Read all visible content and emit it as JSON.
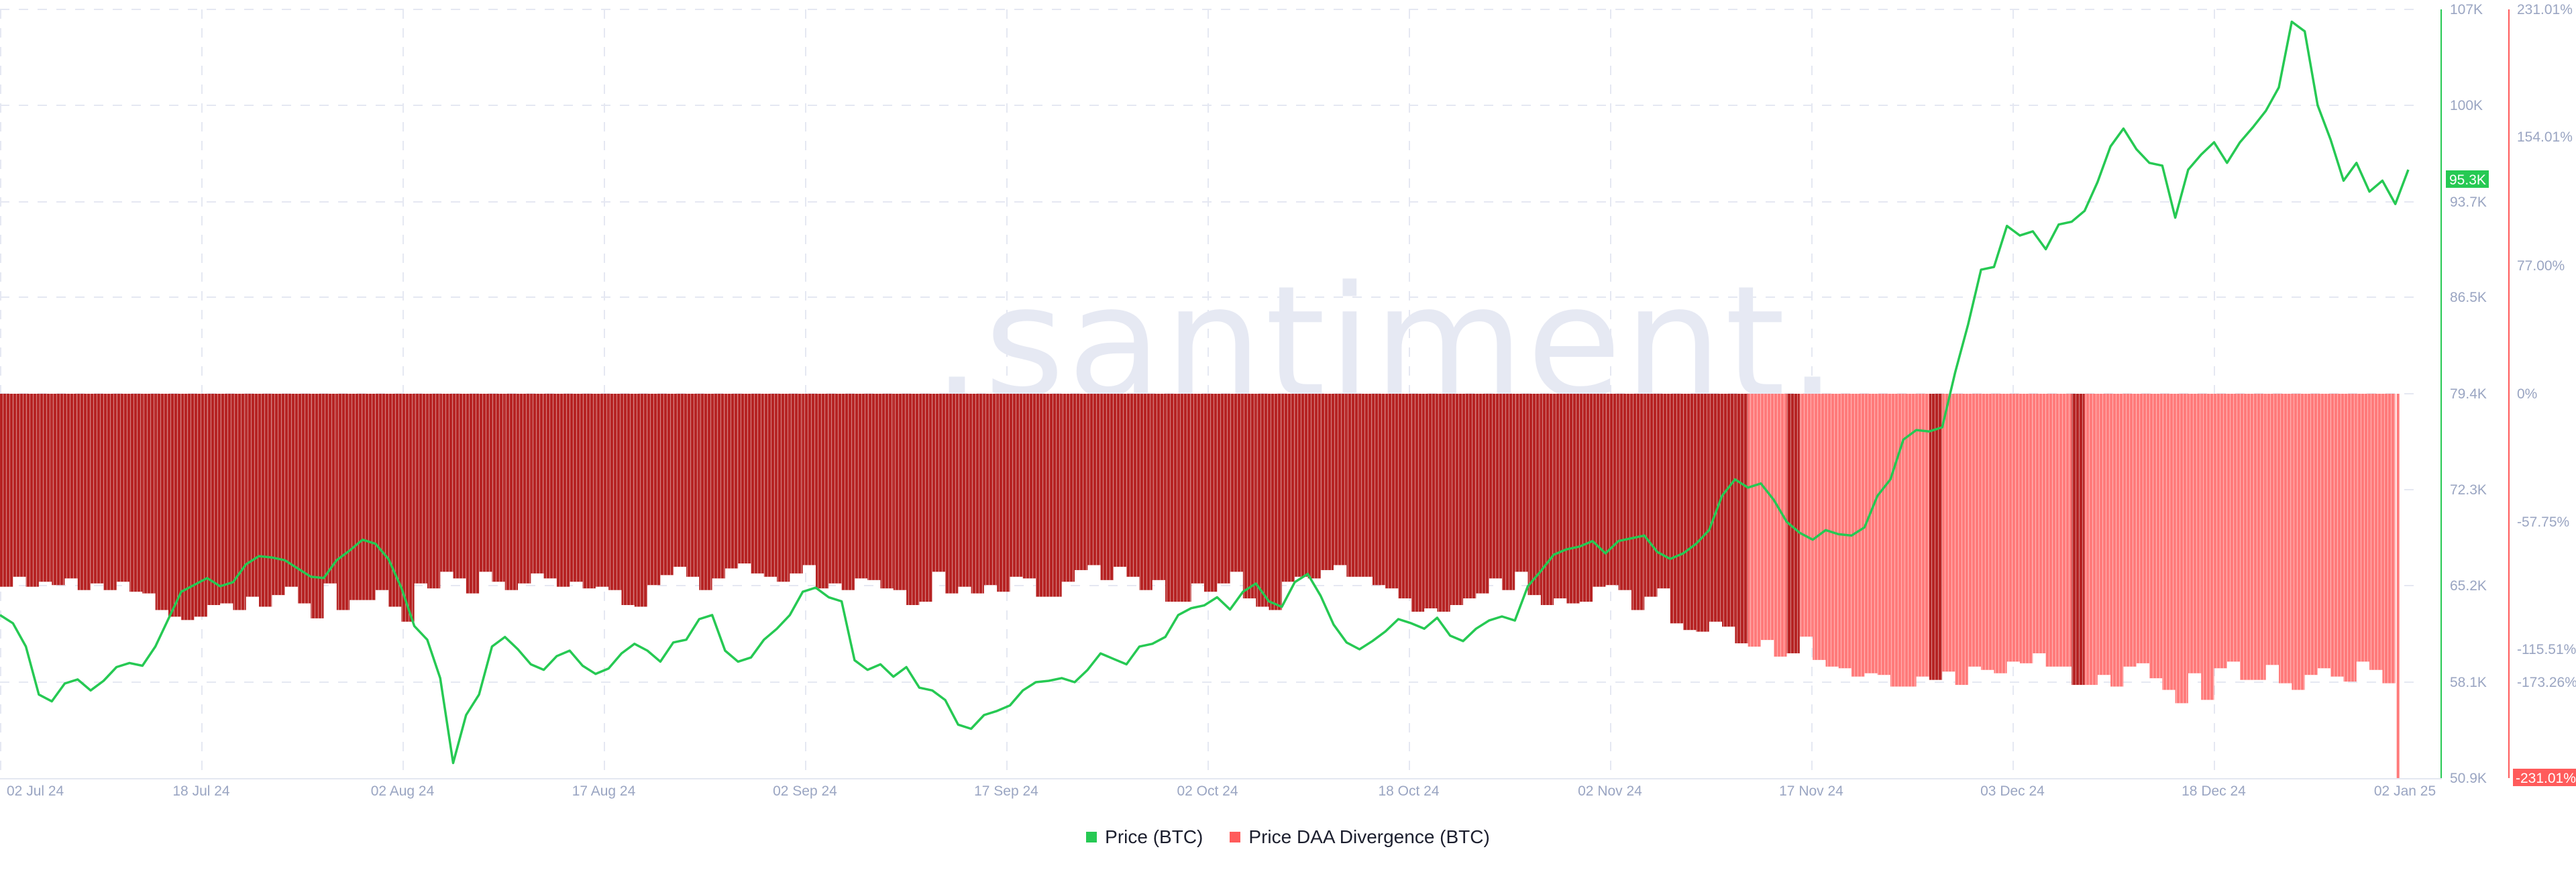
{
  "chart_data": {
    "type": "bar+line",
    "title": "",
    "watermark": ".santiment.",
    "x_ticks": [
      "02 Jul 24",
      "18 Jul 24",
      "02 Aug 24",
      "17 Aug 24",
      "02 Sep 24",
      "17 Sep 24",
      "02 Oct 24",
      "18 Oct 24",
      "02 Nov 24",
      "17 Nov 24",
      "03 Dec 24",
      "18 Dec 24",
      "02 Jan 25"
    ],
    "x_range": [
      "2024-07-02",
      "2025-01-02"
    ],
    "left_axis": {
      "label": "Price (BTC)",
      "ticks": [
        "107K",
        "100K",
        "93.7K",
        "86.5K",
        "79.4K",
        "72.3K",
        "65.2K",
        "58.1K",
        "50.9K"
      ],
      "range": [
        50900,
        107000
      ],
      "current_value_label": "95.3K",
      "color": "#26c953"
    },
    "right_axis": {
      "label": "Price DAA Divergence (BTC)",
      "ticks": [
        "231.01%",
        "154.01%",
        "77.00%",
        "0%",
        "-57.75%",
        "-115.51%",
        "-173.26%",
        "-231.01%"
      ],
      "range": [
        -231.01,
        231.01
      ],
      "current_value_label": "-231.01%",
      "color": "#ff5b5b"
    },
    "grid": true,
    "legend_position": "bottom-center",
    "series": [
      {
        "name": "Price (BTC)",
        "type": "line",
        "color": "#26c953",
        "values": [
          62800,
          62200,
          60500,
          57000,
          56500,
          57800,
          58100,
          57300,
          58000,
          59000,
          59300,
          59100,
          60500,
          62500,
          64500,
          65000,
          65500,
          64900,
          65200,
          66500,
          67100,
          67000,
          66800,
          66200,
          65600,
          65500,
          66800,
          67500,
          68300,
          68000,
          66900,
          64800,
          62000,
          61000,
          58200,
          52000,
          55500,
          57000,
          60500,
          61200,
          60300,
          59200,
          58800,
          59800,
          60200,
          59100,
          58500,
          58900,
          60000,
          60700,
          60200,
          59400,
          60800,
          61000,
          62500,
          62800,
          60200,
          59400,
          59700,
          61000,
          61800,
          62800,
          64500,
          64800,
          64100,
          63800,
          59500,
          58800,
          59200,
          58300,
          59000,
          57500,
          57300,
          56600,
          54800,
          54500,
          55500,
          55800,
          56200,
          57300,
          57900,
          58000,
          58200,
          57900,
          58800,
          60000,
          59600,
          59200,
          60500,
          60700,
          61200,
          62800,
          63300,
          63500,
          64100,
          63200,
          64500,
          65100,
          63800,
          63400,
          65200,
          65800,
          64200,
          62100,
          60800,
          60300,
          60900,
          61600,
          62500,
          62200,
          61800,
          62600,
          61300,
          60900,
          61800,
          62400,
          62700,
          62400,
          64900,
          66000,
          67200,
          67600,
          67800,
          68200,
          67300,
          68200,
          68400,
          68600,
          67400,
          66900,
          67300,
          68000,
          69000,
          71500,
          72700,
          72100,
          72400,
          71200,
          69600,
          68800,
          68300,
          69000,
          68700,
          68600,
          69200,
          71500,
          72700,
          75600,
          76300,
          76200,
          76500,
          80500,
          84000,
          88000,
          88200,
          91200,
          90500,
          90800,
          89500,
          91300,
          91500,
          92300,
          94400,
          97000,
          98300,
          96800,
          95800,
          95600,
          91800,
          95300,
          96400,
          97300,
          95800,
          97300,
          98400,
          99600,
          101300,
          106100,
          105400,
          100000,
          97500,
          94500,
          95800,
          93700,
          94500,
          92800,
          95300
        ]
      },
      {
        "name": "Price DAA Divergence (BTC)",
        "type": "bar",
        "colors": {
          "dark": "#b62323",
          "light": "#ff7a7a"
        },
        "values": [
          -116,
          -110,
          -116,
          -113,
          -115,
          -111,
          -118,
          -114,
          -118,
          -113,
          -119,
          -120,
          -130,
          -134,
          -136,
          -134,
          -127,
          -126,
          -130,
          -122,
          -128,
          -121,
          -116,
          -126,
          -135,
          -114,
          -130,
          -124,
          -124,
          -118,
          -128,
          -137,
          -114,
          -117,
          -107,
          -111,
          -120,
          -107,
          -113,
          -118,
          -114,
          -108,
          -111,
          -116,
          -113,
          -117,
          -116,
          -118,
          -127,
          -128,
          -115,
          -109,
          -104,
          -110,
          -118,
          -111,
          -105,
          -102,
          -108,
          -110,
          -113,
          -108,
          -103,
          -117,
          -114,
          -118,
          -111,
          -112,
          -117,
          -118,
          -127,
          -125,
          -107,
          -120,
          -116,
          -120,
          -115,
          -119,
          -110,
          -111,
          -122,
          -122,
          -113,
          -106,
          -103,
          -112,
          -104,
          -110,
          -118,
          -112,
          -125,
          -125,
          -114,
          -119,
          -114,
          -107,
          -123,
          -128,
          -130,
          -113,
          -110,
          -111,
          -106,
          -103,
          -110,
          -110,
          -115,
          -117,
          -123,
          -131,
          -129,
          -131,
          -127,
          -123,
          -120,
          -111,
          -118,
          -107,
          -121,
          -127,
          -123,
          -126,
          -125,
          -116,
          -115,
          -118,
          -130,
          -122,
          -117,
          -138,
          -142,
          -143,
          -137,
          -140,
          -150,
          -152,
          -148,
          -158,
          -156,
          -146,
          -160,
          -164,
          -165,
          -170,
          -168,
          -169,
          -176,
          -176,
          -170,
          -172,
          -167,
          -175,
          -164,
          -166,
          -168,
          -161,
          -162,
          -156,
          -164,
          -164,
          -175,
          -175,
          -169,
          -176,
          -164,
          -162,
          -171,
          -178,
          -186,
          -168,
          -184,
          -165,
          -161,
          -172,
          -172,
          -163,
          -174,
          -178,
          -169,
          -165,
          -170,
          -173,
          -161,
          -166,
          -174,
          -231.01
        ],
        "dark_until_index": 133,
        "dark_extra_indices": [
          134,
          138,
          149,
          160
        ]
      }
    ]
  },
  "legend": {
    "items": [
      {
        "label": "Price (BTC)",
        "color": "#26c953"
      },
      {
        "label": "Price DAA Divergence (BTC)",
        "color": "#ff5b5b"
      }
    ]
  }
}
